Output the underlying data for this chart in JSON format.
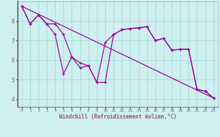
{
  "xlabel": "Windchill (Refroidissement éolien,°C)",
  "background_color": "#cff0f0",
  "grid_color": "#aadddd",
  "line_color": "#990099",
  "spine_color": "#885588",
  "xlim": [
    -0.5,
    23.5
  ],
  "ylim": [
    3.6,
    9.0
  ],
  "yticks": [
    4,
    5,
    6,
    7,
    8
  ],
  "xticks": [
    0,
    1,
    2,
    3,
    4,
    5,
    6,
    7,
    8,
    9,
    10,
    11,
    12,
    13,
    14,
    15,
    16,
    17,
    18,
    19,
    20,
    21,
    22,
    23
  ],
  "series1_x": [
    0,
    1,
    2,
    3,
    4,
    5,
    6,
    7,
    8,
    9,
    10,
    11,
    12,
    13,
    14,
    15,
    16,
    17,
    18,
    19,
    20,
    21,
    22,
    23
  ],
  "series1_y": [
    8.75,
    7.85,
    8.3,
    7.85,
    7.85,
    7.3,
    6.15,
    5.85,
    5.7,
    4.85,
    6.9,
    7.3,
    7.55,
    7.6,
    7.65,
    7.7,
    7.0,
    7.1,
    6.5,
    6.55,
    6.55,
    4.5,
    4.4,
    4.05
  ],
  "series2_x": [
    0,
    1,
    2,
    3,
    4,
    5,
    6,
    7,
    8,
    9,
    10,
    11,
    12,
    13,
    14,
    15,
    16,
    17,
    18,
    19,
    20,
    21,
    22,
    23
  ],
  "series2_y": [
    8.75,
    7.85,
    8.3,
    7.85,
    7.3,
    5.3,
    6.15,
    5.6,
    5.7,
    4.85,
    4.85,
    7.3,
    7.55,
    7.6,
    7.65,
    7.7,
    7.0,
    7.1,
    6.5,
    6.55,
    6.55,
    4.5,
    4.4,
    4.05
  ],
  "series3_x": [
    0,
    23
  ],
  "series3_y": [
    8.75,
    4.05
  ]
}
